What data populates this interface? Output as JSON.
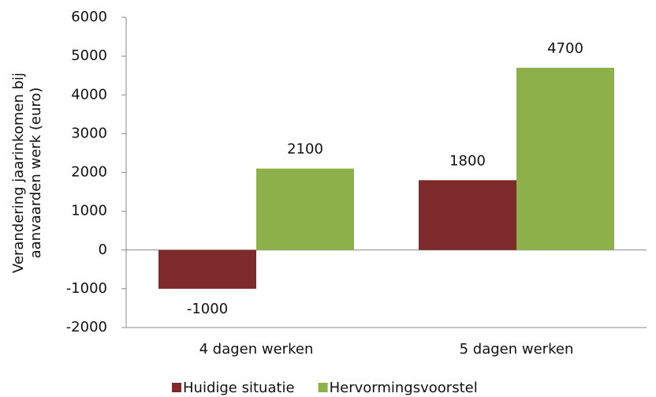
{
  "chart_data": {
    "type": "bar",
    "y_label": [
      "Verandering jaarinkomen bij",
      "aanvaarden werk  (euro)"
    ],
    "categories": [
      "4 dagen werken",
      "5 dagen werken"
    ],
    "series": [
      {
        "name": "Huidige situatie",
        "color": "#7f2a2a",
        "values": [
          -1000,
          1800
        ]
      },
      {
        "name": "Hervormingsvoorstel",
        "color": "#8db04a",
        "values": [
          2100,
          4700
        ]
      }
    ],
    "ylim": [
      -2000,
      6000
    ],
    "yticks": [
      -2000,
      -1000,
      0,
      1000,
      2000,
      3000,
      4000,
      5000,
      6000
    ],
    "legend": "bottom"
  }
}
